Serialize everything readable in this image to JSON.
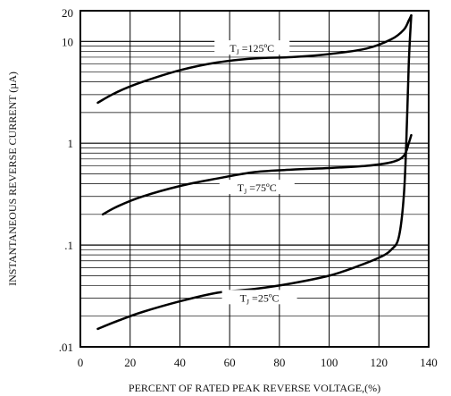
{
  "chart_data": {
    "type": "line",
    "title": "",
    "xlabel": "PERCENT OF RATED PEAK REVERSE VOLTAGE,(%)",
    "ylabel": "INSTANTANEOUS REVERSE CURRENT (µA)",
    "xlim": [
      0,
      140
    ],
    "ylim": [
      0.01,
      20
    ],
    "yscale": "log",
    "grid": true,
    "x_ticks": [
      0,
      20,
      40,
      60,
      80,
      100,
      120,
      140
    ],
    "x_tick_labels": [
      "0",
      "20",
      "40",
      "60",
      "80",
      "100",
      "120",
      "140"
    ],
    "y_ticks": [
      0.01,
      0.1,
      1,
      10,
      20
    ],
    "y_tick_labels": [
      ".01",
      ".1",
      "1",
      "10",
      "20"
    ],
    "legend": "none",
    "series": [
      {
        "label_text": "T =125ºC",
        "label_sub": "J",
        "x": [
          7,
          15,
          25,
          40,
          55,
          70,
          85,
          100,
          115,
          125,
          130,
          132,
          133
        ],
        "y": [
          2.5,
          3.2,
          4.0,
          5.2,
          6.2,
          6.8,
          7.0,
          7.5,
          8.5,
          10.5,
          13,
          16,
          18
        ]
      },
      {
        "label_text": "T =75ºC",
        "label_sub": "J",
        "x": [
          9,
          15,
          25,
          40,
          55,
          70,
          85,
          100,
          115,
          125,
          130,
          132,
          133
        ],
        "y": [
          0.2,
          0.24,
          0.3,
          0.38,
          0.45,
          0.52,
          0.55,
          0.57,
          0.6,
          0.65,
          0.75,
          1.0,
          1.2
        ]
      },
      {
        "label_text": "T =25ºC",
        "label_sub": "J",
        "x": [
          7,
          15,
          25,
          40,
          55,
          70,
          85,
          100,
          110,
          120,
          125,
          128,
          130,
          131,
          132,
          133
        ],
        "y": [
          0.015,
          0.018,
          0.022,
          0.028,
          0.034,
          0.037,
          0.042,
          0.05,
          0.06,
          0.075,
          0.09,
          0.12,
          0.3,
          1.0,
          6.0,
          18.0
        ]
      }
    ]
  }
}
